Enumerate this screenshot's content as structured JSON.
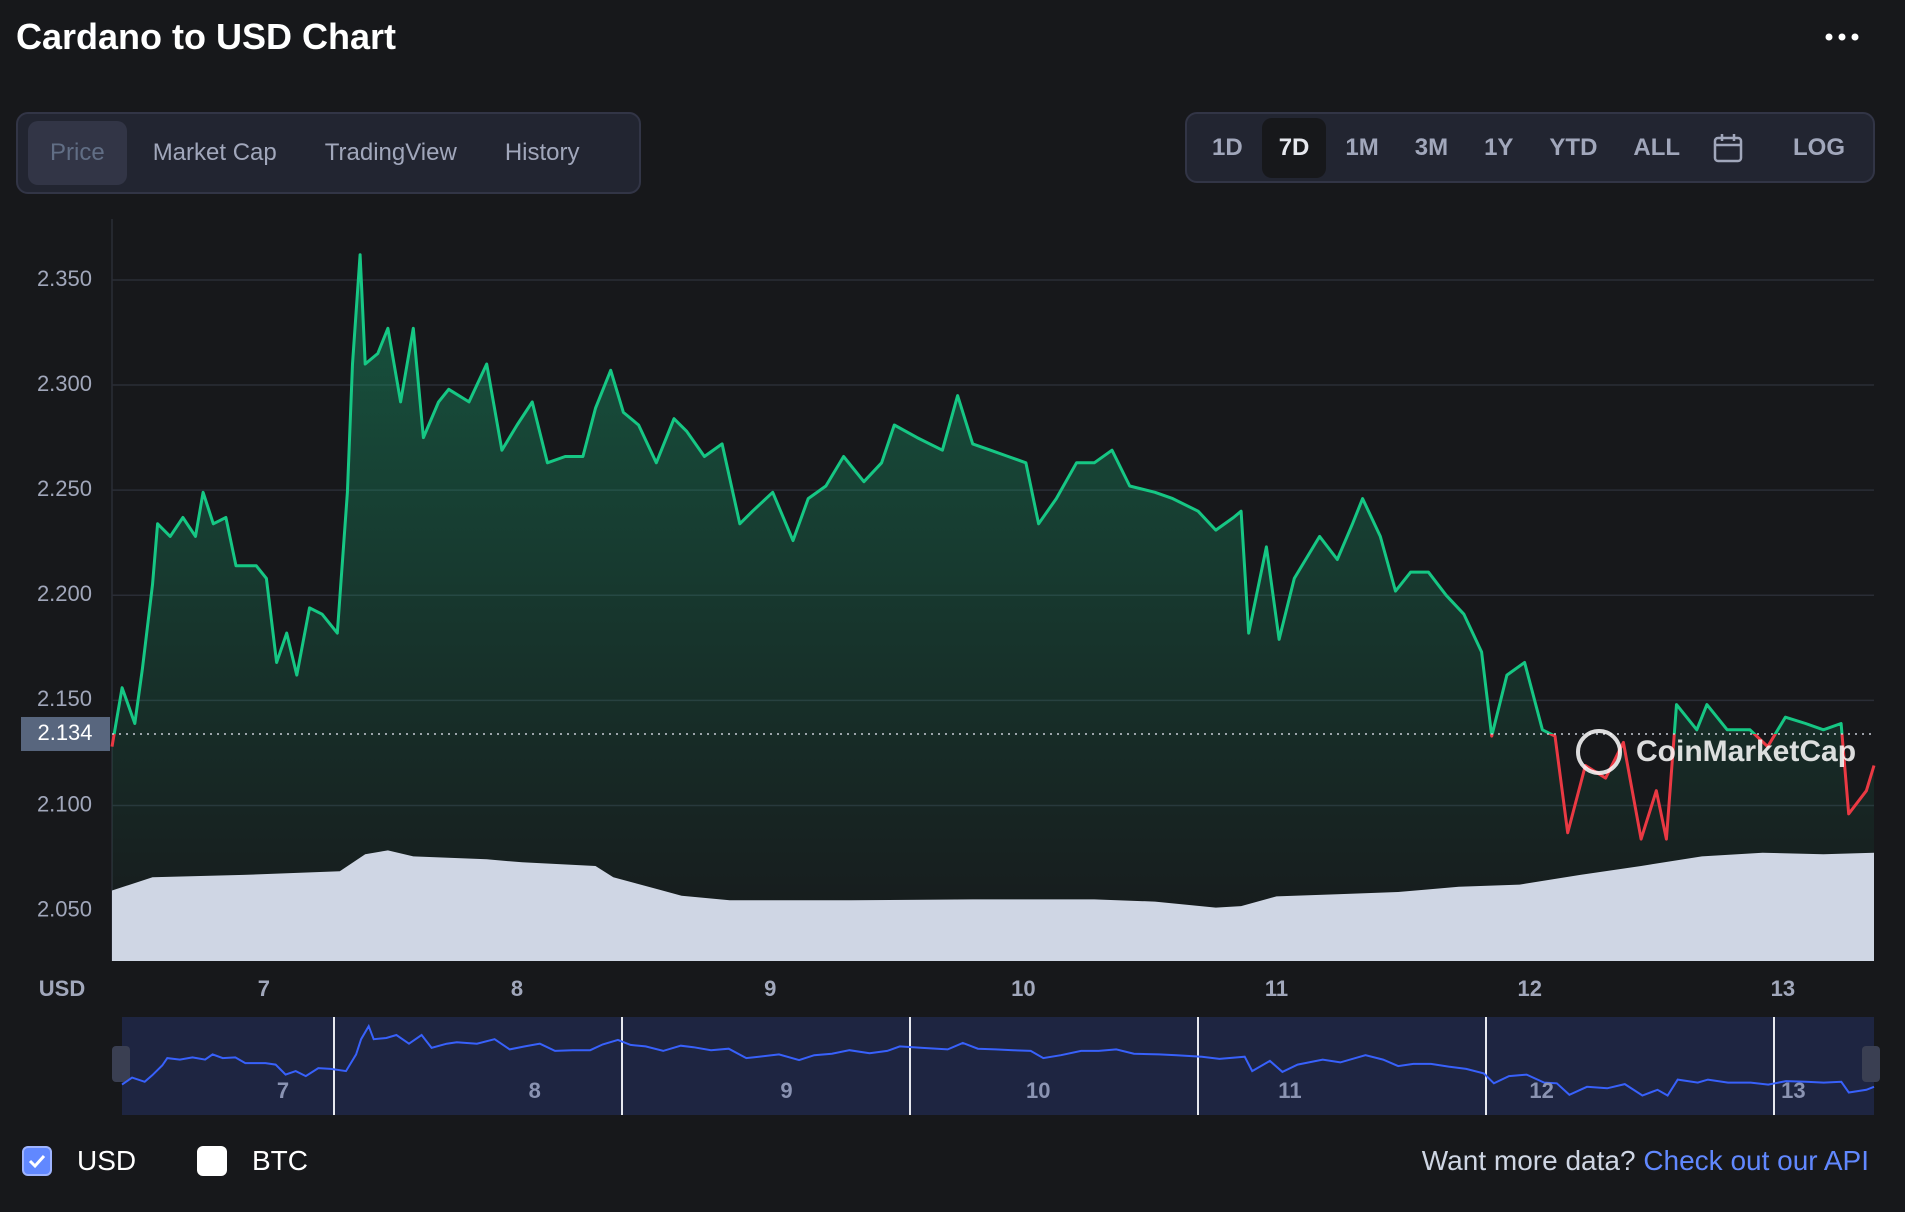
{
  "header": {
    "title": "Cardano to USD Chart"
  },
  "tabs": [
    "Price",
    "Market Cap",
    "TradingView",
    "History"
  ],
  "active_tab": 0,
  "ranges": [
    "1D",
    "7D",
    "1M",
    "3M",
    "1Y",
    "YTD",
    "ALL"
  ],
  "active_range": 1,
  "log_button": "LOG",
  "chart_data": {
    "type": "line",
    "y_axis_label": "USD",
    "watermark": "CoinMarketCap",
    "color_up": "#16c784",
    "color_down": "#ea3943",
    "volume_color": "#cfd6e4",
    "navigator_color": "#3861fb",
    "x": [
      6.4,
      6.44,
      6.49,
      6.52,
      6.56,
      6.58,
      6.63,
      6.68,
      6.73,
      6.76,
      6.8,
      6.85,
      6.89,
      6.97,
      7.01,
      7.05,
      7.09,
      7.13,
      7.18,
      7.23,
      7.29,
      7.33,
      7.35,
      7.38,
      7.4,
      7.45,
      7.49,
      7.54,
      7.59,
      7.63,
      7.69,
      7.73,
      7.81,
      7.88,
      7.94,
      8.0,
      8.06,
      8.12,
      8.19,
      8.26,
      8.31,
      8.37,
      8.42,
      8.48,
      8.55,
      8.62,
      8.67,
      8.74,
      8.81,
      8.88,
      8.93,
      9.01,
      9.09,
      9.15,
      9.22,
      9.29,
      9.37,
      9.44,
      9.49,
      9.58,
      9.68,
      9.74,
      9.8,
      9.87,
      9.94,
      10.01,
      10.06,
      10.13,
      10.21,
      10.28,
      10.35,
      10.42,
      10.52,
      10.59,
      10.69,
      10.76,
      10.83,
      10.86,
      10.89,
      10.96,
      11.01,
      11.07,
      11.17,
      11.24,
      11.3,
      11.34,
      11.41,
      11.47,
      11.53,
      11.6,
      11.67,
      11.74,
      11.81,
      11.85,
      11.91,
      11.98,
      12.05,
      12.1,
      12.15,
      12.22,
      12.3,
      12.37,
      12.44,
      12.5,
      12.54,
      12.58,
      12.66,
      12.7,
      12.78,
      12.87,
      12.94,
      13.01,
      13.09,
      13.16,
      13.23,
      13.26,
      13.33,
      13.36
    ],
    "values": [
      2.128,
      2.156,
      2.139,
      2.165,
      2.205,
      2.234,
      2.228,
      2.237,
      2.228,
      2.249,
      2.234,
      2.237,
      2.214,
      2.214,
      2.208,
      2.168,
      2.182,
      2.162,
      2.194,
      2.191,
      2.182,
      2.249,
      2.31,
      2.362,
      2.31,
      2.315,
      2.327,
      2.292,
      2.327,
      2.275,
      2.292,
      2.298,
      2.292,
      2.31,
      2.269,
      2.281,
      2.292,
      2.263,
      2.266,
      2.266,
      2.289,
      2.307,
      2.287,
      2.281,
      2.263,
      2.284,
      2.278,
      2.266,
      2.272,
      2.234,
      2.24,
      2.249,
      2.226,
      2.246,
      2.252,
      2.266,
      2.254,
      2.263,
      2.281,
      2.275,
      2.269,
      2.295,
      2.272,
      2.269,
      2.266,
      2.263,
      2.234,
      2.246,
      2.263,
      2.263,
      2.269,
      2.252,
      2.249,
      2.246,
      2.24,
      2.231,
      2.237,
      2.24,
      2.182,
      2.223,
      2.179,
      2.208,
      2.228,
      2.217,
      2.234,
      2.246,
      2.228,
      2.202,
      2.211,
      2.211,
      2.2,
      2.191,
      2.173,
      2.133,
      2.162,
      2.168,
      2.136,
      2.133,
      2.087,
      2.119,
      2.113,
      2.13,
      2.084,
      2.107,
      2.084,
      2.148,
      2.136,
      2.148,
      2.136,
      2.136,
      2.128,
      2.142,
      2.139,
      2.136,
      2.139,
      2.096,
      2.107,
      2.119
    ],
    "reference": 2.134,
    "volume": {
      "x": [
        6.4,
        6.56,
        6.92,
        7.3,
        7.4,
        7.49,
        7.59,
        7.88,
        8.02,
        8.31,
        8.38,
        8.65,
        8.84,
        9.32,
        9.8,
        10.28,
        10.52,
        10.76,
        10.86,
        11.0,
        11.24,
        11.48,
        11.72,
        11.96,
        12.2,
        12.44,
        12.68,
        12.92,
        13.16,
        13.36
      ],
      "values": [
        9.5,
        11.3,
        11.6,
        12.1,
        14.4,
        14.9,
        14.1,
        13.7,
        13.3,
        12.8,
        11.3,
        8.8,
        8.2,
        8.2,
        8.3,
        8.3,
        8.0,
        7.2,
        7.4,
        8.7,
        9.0,
        9.3,
        10.0,
        10.3,
        11.6,
        12.8,
        14.1,
        14.6,
        14.4,
        14.6
      ]
    },
    "xlim": [
      6.4,
      13.36
    ],
    "ylim": [
      2.026,
      2.379
    ],
    "y2lim": [
      0,
      100
    ],
    "xticks": [
      7,
      8,
      9,
      10,
      11,
      12,
      13
    ],
    "yticks": [
      {
        "value": 2.05,
        "label": "2.050"
      },
      {
        "value": 2.1,
        "label": "2.100"
      },
      {
        "value": 2.15,
        "label": "2.150"
      },
      {
        "value": 2.2,
        "label": "2.200"
      },
      {
        "value": 2.25,
        "label": "2.250"
      },
      {
        "value": 2.3,
        "label": "2.300"
      },
      {
        "value": 2.35,
        "label": "2.350"
      }
    ],
    "grid": true
  },
  "footer": {
    "checkboxes": [
      {
        "label": "USD",
        "checked": true
      },
      {
        "label": "BTC",
        "checked": false
      }
    ],
    "prompt": "Want more data?",
    "link": "Check out our API"
  }
}
